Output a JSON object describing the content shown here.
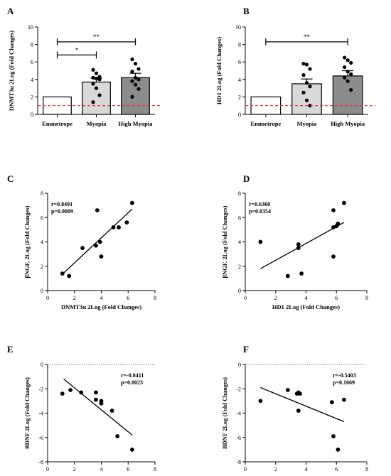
{
  "chart_data": [
    {
      "panel": "A",
      "type": "bar",
      "categories": [
        "Emmetrope",
        "Myopia",
        "High Myopia"
      ],
      "values": [
        2.0,
        3.7,
        4.2
      ],
      "errors": [
        0,
        0.45,
        0.5
      ],
      "bar_colors": [
        "#ffffff",
        "#d9d9d9",
        "#8c8c8c"
      ],
      "points": [
        [],
        [
          5.1,
          4.7,
          4.3,
          4.2,
          4.1,
          4.0,
          3.5,
          3.0,
          2.2,
          1.4
        ],
        [
          6.3,
          5.8,
          5.2,
          4.9,
          4.2,
          4.0,
          3.8,
          3.4,
          2.9,
          2.0
        ]
      ],
      "ylabel": "DNMT3α 2Log (Fold Changes)",
      "ylim": [
        0,
        10
      ],
      "yticks": [
        0,
        2,
        4,
        6,
        8,
        10
      ],
      "reference_line": 1.0,
      "reference_color": "#e03030",
      "significance": [
        {
          "from": 0,
          "to": 1,
          "label": "*"
        },
        {
          "from": 0,
          "to": 2,
          "label": "**"
        }
      ]
    },
    {
      "panel": "B",
      "type": "bar",
      "categories": [
        "Emmetrope",
        "Myopia",
        "High Myopia"
      ],
      "values": [
        2.0,
        3.5,
        4.4
      ],
      "errors": [
        0,
        0.55,
        0.6
      ],
      "bar_colors": [
        "#ffffff",
        "#d9d9d9",
        "#8c8c8c"
      ],
      "points": [
        [],
        [
          5.8,
          5.7,
          5.2,
          4.5,
          3.6,
          3.2,
          2.5,
          1.6,
          1.0
        ],
        [
          6.5,
          6.2,
          5.9,
          5.4,
          4.9,
          4.6,
          4.2,
          3.8,
          2.8
        ]
      ],
      "ylabel": "HD1 2Log (Fold Changes)",
      "ylim": [
        0,
        10
      ],
      "yticks": [
        0,
        2,
        4,
        6,
        8,
        10
      ],
      "reference_line": 1.0,
      "reference_color": "#e03030",
      "significance": [
        {
          "from": 0,
          "to": 2,
          "label": "**"
        }
      ]
    },
    {
      "panel": "C",
      "type": "scatter",
      "points": [
        [
          1.1,
          1.4
        ],
        [
          1.6,
          1.2
        ],
        [
          2.6,
          3.5
        ],
        [
          3.6,
          3.7
        ],
        [
          3.7,
          6.6
        ],
        [
          3.9,
          4.0
        ],
        [
          4.0,
          2.8
        ],
        [
          4.9,
          5.2
        ],
        [
          5.3,
          5.2
        ],
        [
          5.9,
          5.6
        ],
        [
          6.3,
          7.2
        ]
      ],
      "fit_line": [
        [
          1.1,
          1.35
        ],
        [
          6.3,
          6.7
        ]
      ],
      "stats": [
        "r=0.8491",
        "p=0.0009"
      ],
      "xlabel": "DNMT3α 2Log (Fold Changes)",
      "ylabel": "βNGF, 2Log (Fold Changes)",
      "xlim": [
        0,
        8
      ],
      "ylim": [
        0,
        8
      ],
      "xticks": [
        0,
        2,
        4,
        6,
        8
      ],
      "yticks": [
        0,
        2,
        4,
        6,
        8
      ]
    },
    {
      "panel": "D",
      "type": "scatter",
      "points": [
        [
          1.0,
          4.0
        ],
        [
          2.8,
          1.2
        ],
        [
          3.5,
          3.8
        ],
        [
          3.5,
          3.5
        ],
        [
          3.7,
          1.4
        ],
        [
          5.8,
          6.6
        ],
        [
          5.8,
          5.2
        ],
        [
          5.8,
          2.8
        ],
        [
          6.0,
          5.3
        ],
        [
          6.1,
          5.5
        ],
        [
          6.5,
          7.2
        ]
      ],
      "fit_line": [
        [
          1.0,
          1.8
        ],
        [
          6.5,
          5.6
        ]
      ],
      "stats": [
        "r=0.6360",
        "p=0.0354"
      ],
      "xlabel": "HD1 2Log (Fold Changes)",
      "ylabel": "βNGF, 2Log (Fold Changes)",
      "xlim": [
        0,
        8
      ],
      "ylim": [
        0,
        8
      ],
      "xticks": [
        0,
        2,
        4,
        6,
        8
      ],
      "yticks": [
        0,
        2,
        4,
        6,
        8
      ]
    },
    {
      "panel": "E",
      "type": "scatter",
      "points": [
        [
          1.1,
          -2.4
        ],
        [
          1.7,
          -2.1
        ],
        [
          2.5,
          -2.3
        ],
        [
          3.6,
          -2.3
        ],
        [
          3.6,
          -2.9
        ],
        [
          4.0,
          -3.0
        ],
        [
          4.0,
          -3.2
        ],
        [
          4.8,
          -3.8
        ],
        [
          5.2,
          -5.9
        ],
        [
          6.3,
          -7.0
        ]
      ],
      "fit_line": [
        [
          1.2,
          -1.2
        ],
        [
          6.3,
          -5.8
        ]
      ],
      "stats": [
        "r=-0.8411",
        "p=0.0023"
      ],
      "xlabel": "DNMT3α 2Log (Fold Changes)",
      "ylabel": "BDNF 2Log (Fold Changes)",
      "xlim": [
        0,
        8
      ],
      "ylim": [
        -8,
        0
      ],
      "xticks": [
        0,
        2,
        4,
        6,
        8
      ],
      "yticks": [
        -8,
        -6,
        -4,
        -2,
        0
      ],
      "zero_line": true
    },
    {
      "panel": "F",
      "type": "scatter",
      "points": [
        [
          1.0,
          -3.0
        ],
        [
          2.8,
          -2.1
        ],
        [
          3.4,
          -2.4
        ],
        [
          3.5,
          -2.3
        ],
        [
          3.5,
          -3.8
        ],
        [
          3.6,
          -2.4
        ],
        [
          5.7,
          -3.1
        ],
        [
          5.8,
          -5.9
        ],
        [
          6.1,
          -7.0
        ],
        [
          6.5,
          -2.9
        ]
      ],
      "fit_line": [
        [
          1.0,
          -1.9
        ],
        [
          6.5,
          -4.7
        ]
      ],
      "stats": [
        "r=-0.5403",
        "p=0.1069"
      ],
      "xlabel": "HD1 2Log (Fold Changes)",
      "ylabel": "BDNF 2Log (Fold Changes)",
      "xlim": [
        0,
        8
      ],
      "ylim": [
        -8,
        0
      ],
      "xticks": [
        0,
        2,
        4,
        6,
        8
      ],
      "yticks": [
        -8,
        -6,
        -4,
        -2,
        0
      ],
      "zero_line": true
    }
  ]
}
